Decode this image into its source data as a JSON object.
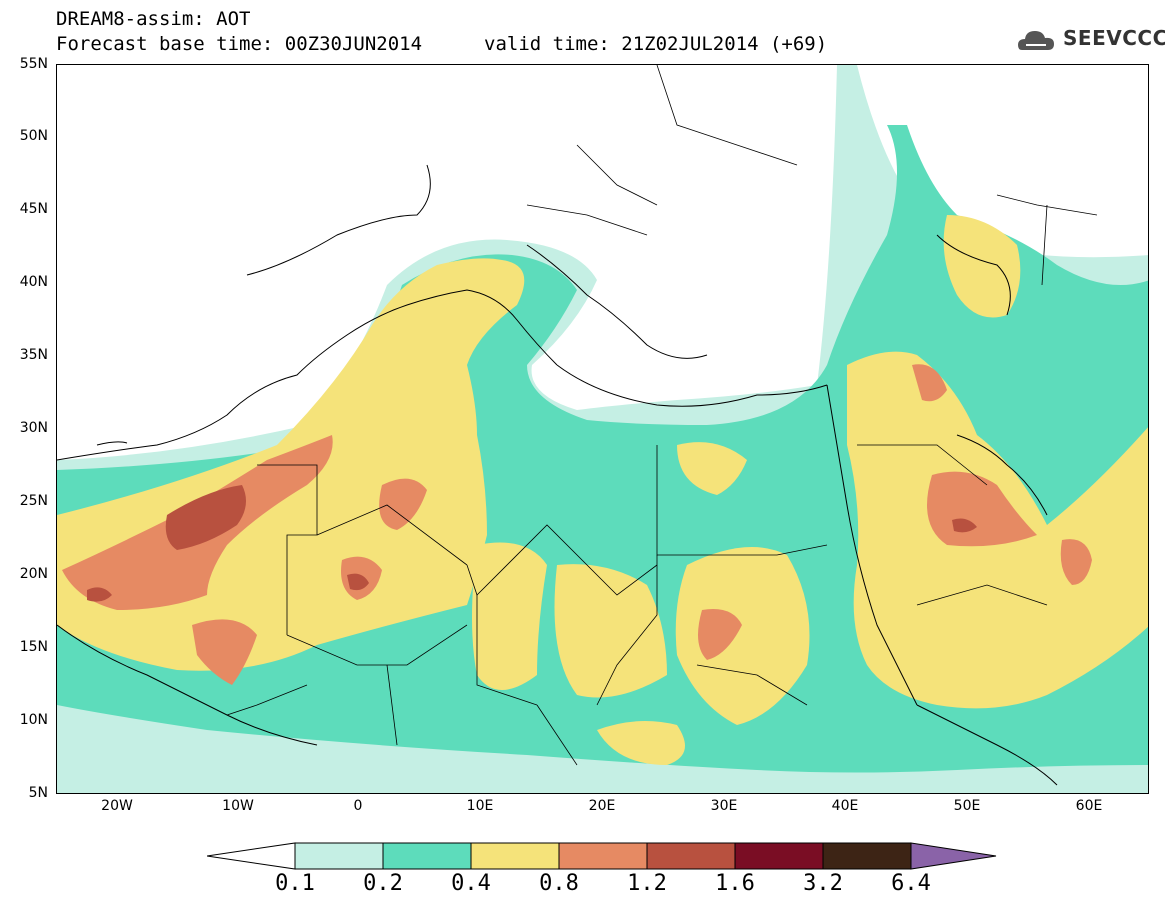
{
  "header": {
    "title": "DREAM8-assim: AOT",
    "base_time": "Forecast base time: 00Z30JUN2014",
    "valid_time": "valid time: 21Z02JUL2014 (+69)",
    "logo_text": "SEEVCCC"
  },
  "map": {
    "lat_labels": [
      "55N",
      "50N",
      "45N",
      "40N",
      "35N",
      "30N",
      "25N",
      "20N",
      "15N",
      "10N",
      "5N"
    ],
    "lon_labels": [
      "20W",
      "10W",
      "0",
      "10E",
      "20E",
      "30E",
      "40E",
      "50E",
      "60E"
    ],
    "extent": {
      "lon_min": -25,
      "lon_max": 65,
      "lat_min": 5,
      "lat_max": 55
    }
  },
  "colorbar": {
    "labels": [
      "0.1",
      "0.2",
      "0.4",
      "0.8",
      "1.2",
      "1.6",
      "3.2",
      "6.4"
    ],
    "colors": [
      "#ffffff",
      "#c5efe4",
      "#5ddcbb",
      "#f5e37a",
      "#e68a63",
      "#b8513f",
      "#7a0d24",
      "#3d2415",
      "#8a63a8"
    ]
  }
}
